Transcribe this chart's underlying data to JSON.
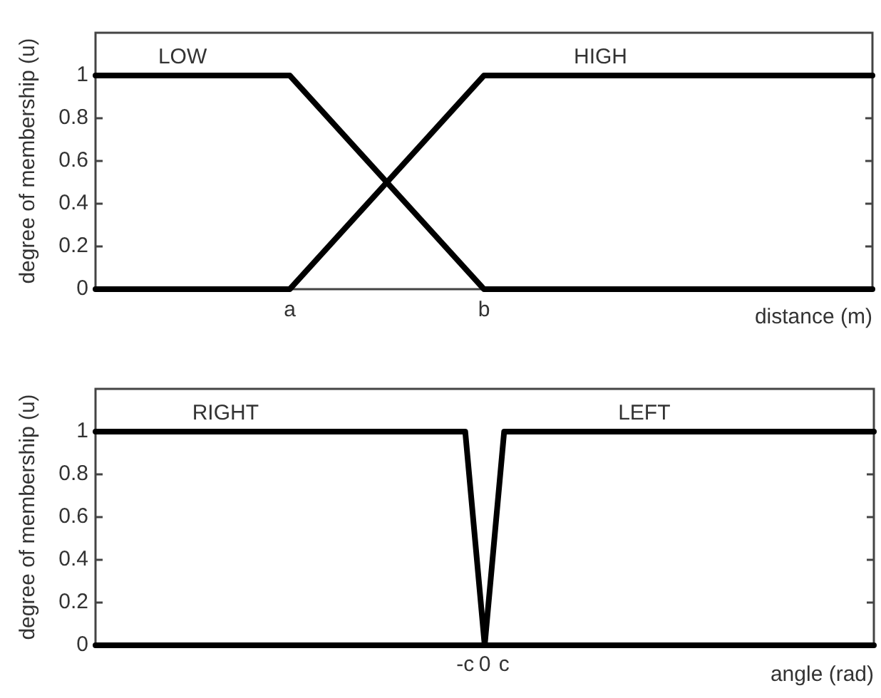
{
  "chart_data": [
    {
      "type": "line",
      "xlabel": "distance (m)",
      "ylabel": "degree of membership (u)",
      "categories": [
        null,
        "a",
        "b",
        null,
        null
      ],
      "series": [
        {
          "name": "LOW",
          "color": "#000000",
          "values": [
            1,
            1,
            0,
            0,
            0
          ]
        },
        {
          "name": "HIGH",
          "color": "#000000",
          "values": [
            0,
            0,
            1,
            1,
            1
          ]
        }
      ],
      "ylim": [
        0,
        1.2
      ],
      "yticks": [
        0,
        0.2,
        0.4,
        0.6,
        0.8,
        1
      ],
      "grid": false,
      "legend": false,
      "marker": "none",
      "line_style": "solid"
    },
    {
      "type": "line",
      "xlabel": "angle (rad)",
      "ylabel": "degree of membership (u)",
      "categories": [
        null,
        null,
        null,
        null,
        null,
        null,
        null,
        null,
        null,
        null,
        null,
        null,
        null,
        null,
        null,
        null,
        null,
        null,
        null,
        "-c",
        "0",
        "c",
        null,
        null,
        null,
        null,
        null,
        null,
        null,
        null,
        null,
        null,
        null,
        null,
        null,
        null,
        null,
        null,
        null,
        null,
        null
      ],
      "series": [
        {
          "name": "RIGHT",
          "color": "#000000",
          "values": [
            1,
            1,
            1,
            1,
            1,
            1,
            1,
            1,
            1,
            1,
            1,
            1,
            1,
            1,
            1,
            1,
            1,
            1,
            1,
            1,
            0,
            0,
            0,
            0,
            0,
            0,
            0,
            0,
            0,
            0,
            0,
            0,
            0,
            0,
            0,
            0,
            0,
            0,
            0,
            0,
            0
          ]
        },
        {
          "name": "LEFT",
          "color": "#000000",
          "values": [
            0,
            0,
            0,
            0,
            0,
            0,
            0,
            0,
            0,
            0,
            0,
            0,
            0,
            0,
            0,
            0,
            0,
            0,
            0,
            0,
            0,
            1,
            1,
            1,
            1,
            1,
            1,
            1,
            1,
            1,
            1,
            1,
            1,
            1,
            1,
            1,
            1,
            1,
            1,
            1,
            1
          ]
        }
      ],
      "ylim": [
        0,
        1.2
      ],
      "yticks": [
        0,
        0.2,
        0.4,
        0.6,
        0.8,
        1
      ],
      "grid": false,
      "legend": false,
      "marker": "none",
      "line_style": "solid"
    }
  ]
}
